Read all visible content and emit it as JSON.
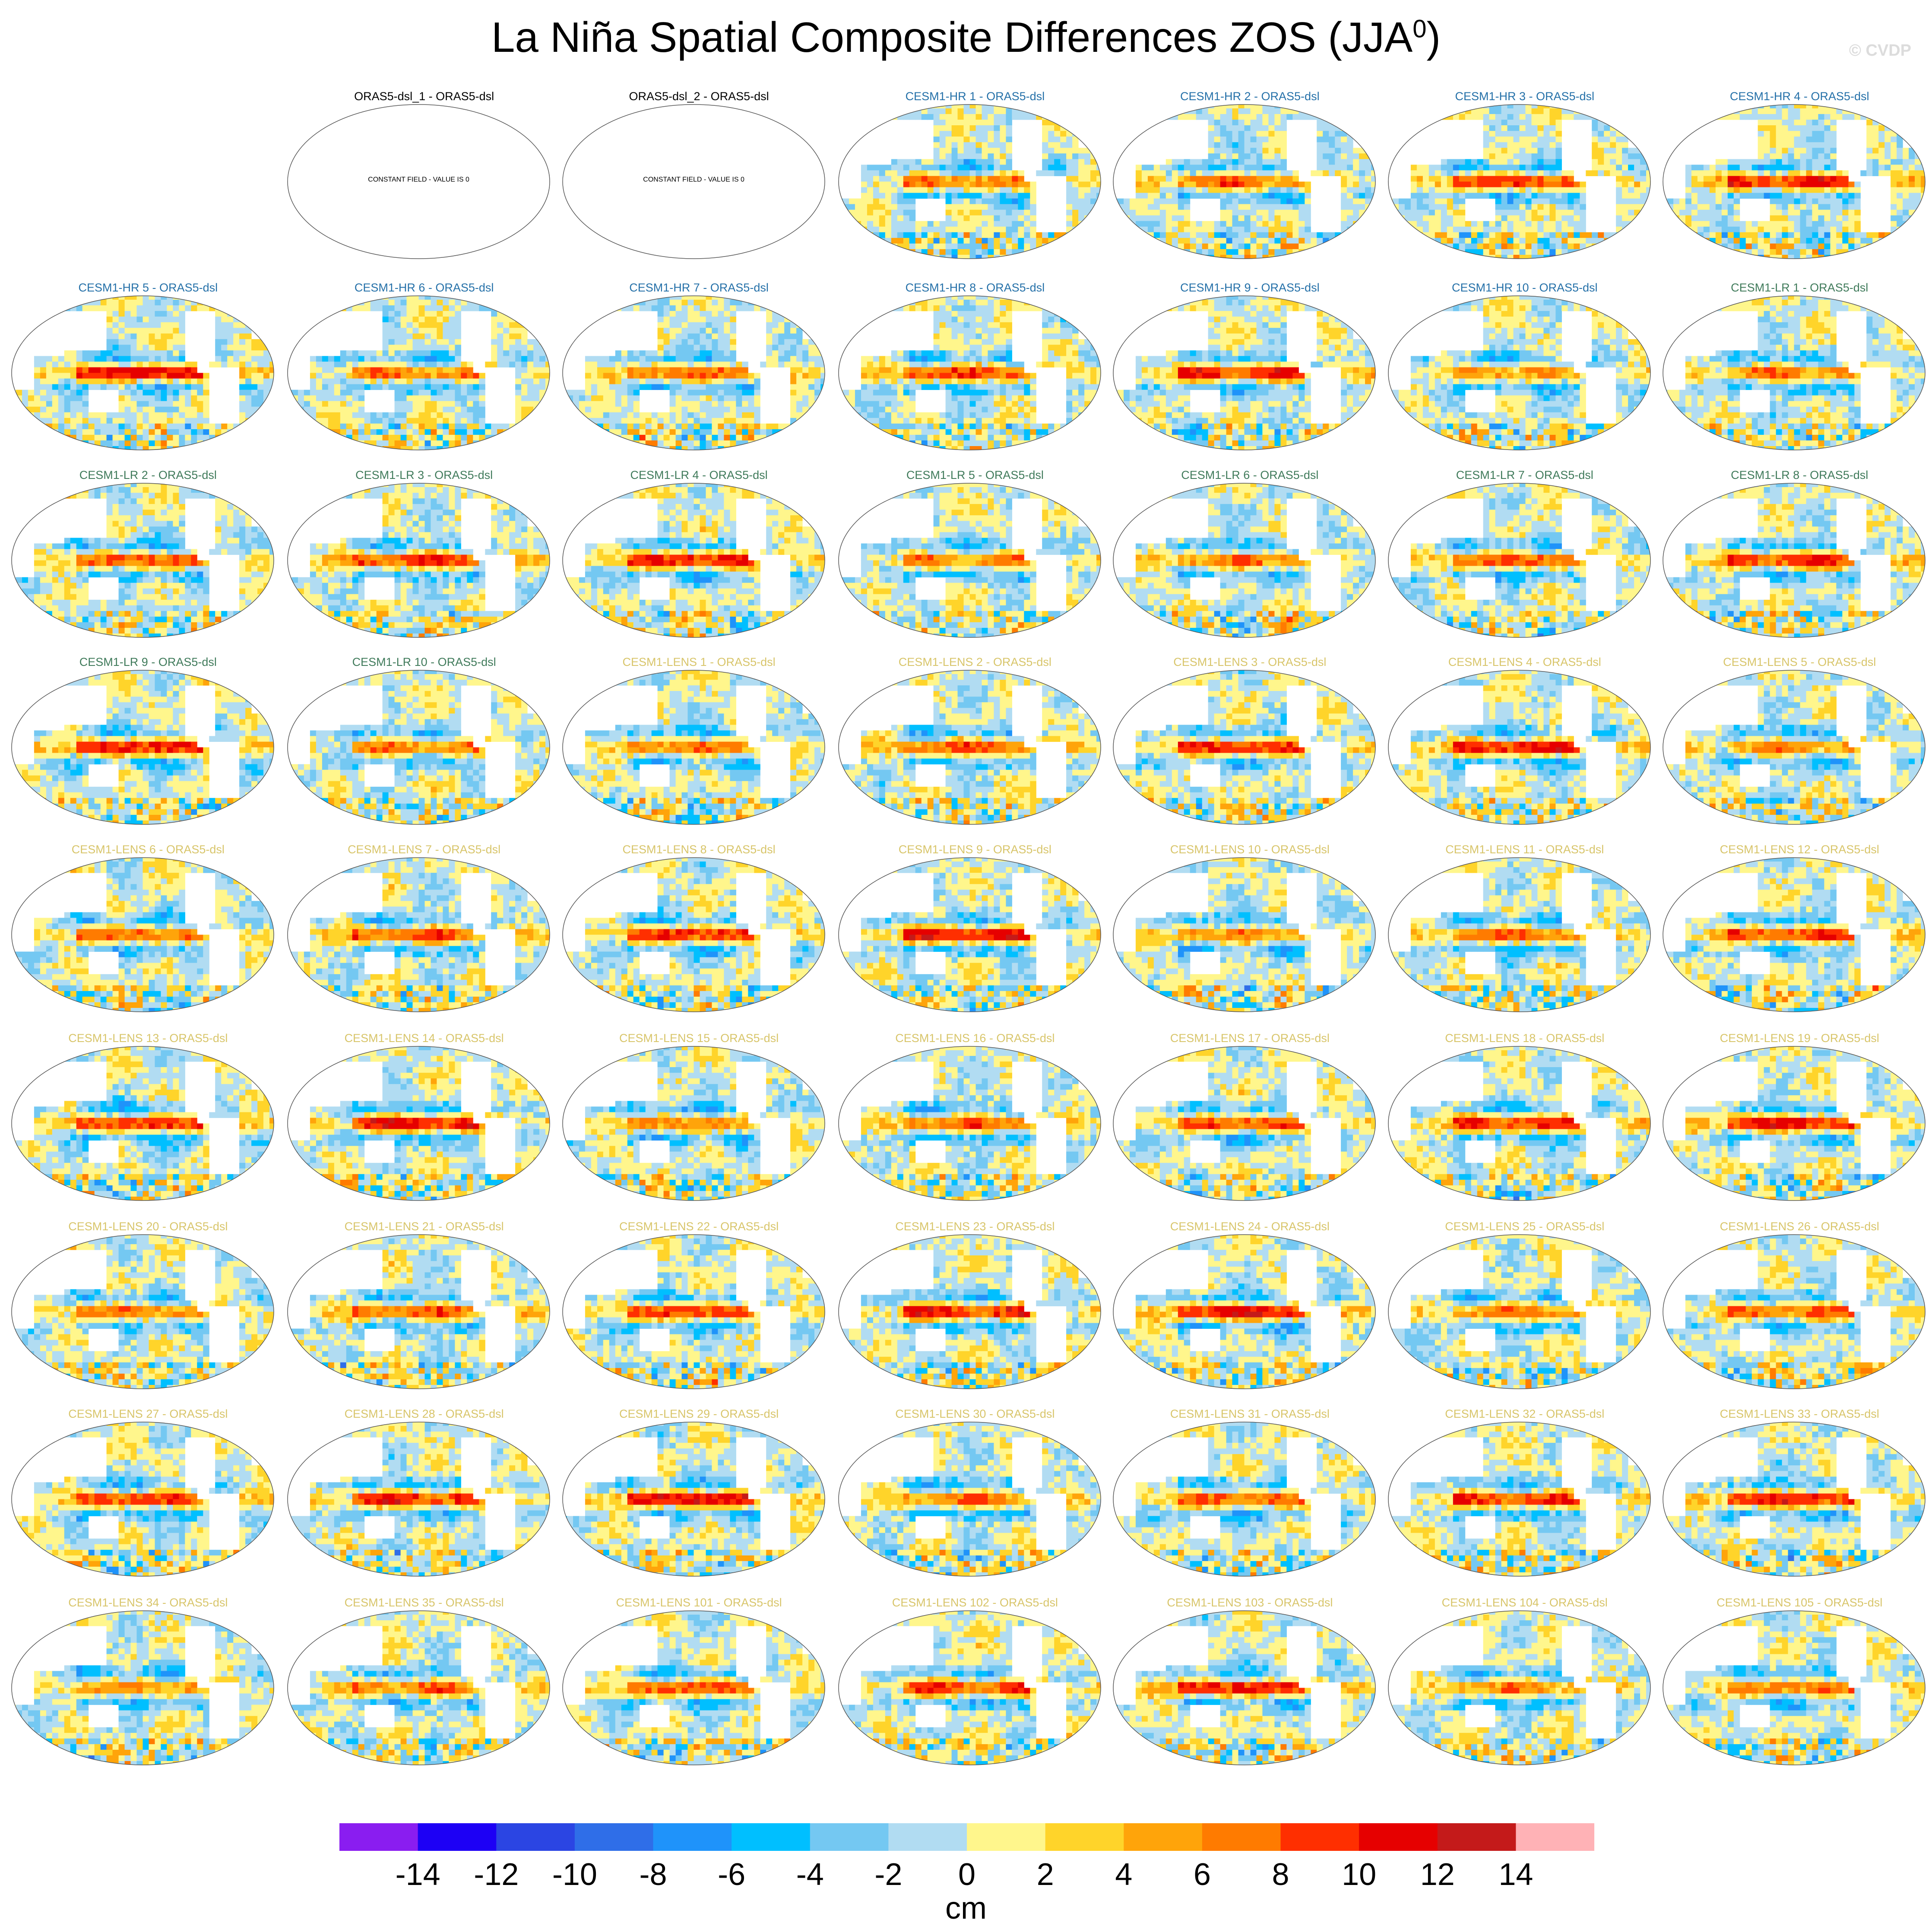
{
  "title": "La Niña Spatial Composite Differences ZOS (JJA",
  "title_superscript": "0",
  "title_suffix": ")",
  "watermark": "© CVDP",
  "colorbar": {
    "units": "cm",
    "tick_labels": [
      "-14",
      "-12",
      "-10",
      "-8",
      "-6",
      "-4",
      "-2",
      "0",
      "2",
      "4",
      "6",
      "8",
      "10",
      "12",
      "14"
    ],
    "colors": [
      "#8a1df0",
      "#1d00f5",
      "#2b45e3",
      "#2f6ee8",
      "#1f93fa",
      "#00bfff",
      "#74c8f2",
      "#b1dcf2",
      "#fff68c",
      "#ffd42a",
      "#ffa40a",
      "#ff7b00",
      "#ff2f00",
      "#e60000",
      "#c41a1a",
      "#ffb2b6"
    ]
  },
  "group_colors": {
    "ORAS5-dsl": "#000000",
    "CESM1-HR": "#2470a8",
    "CESM1-LR": "#3f7a5a",
    "CESM1-LENS": "#d8c56a"
  },
  "panels": [
    {
      "label": "ORAS5-dsl_1 - ORAS5-dsl",
      "group": "ORAS5-dsl",
      "constant_text": "CONSTANT FIELD - VALUE IS 0"
    },
    {
      "label": "ORAS5-dsl_2 - ORAS5-dsl",
      "group": "ORAS5-dsl",
      "constant_text": "CONSTANT FIELD - VALUE IS 0"
    },
    {
      "label": "CESM1-HR 1 - ORAS5-dsl",
      "group": "CESM1-HR"
    },
    {
      "label": "CESM1-HR 2 - ORAS5-dsl",
      "group": "CESM1-HR"
    },
    {
      "label": "CESM1-HR 3 - ORAS5-dsl",
      "group": "CESM1-HR"
    },
    {
      "label": "CESM1-HR 4 - ORAS5-dsl",
      "group": "CESM1-HR"
    },
    {
      "label": "CESM1-HR 5 - ORAS5-dsl",
      "group": "CESM1-HR"
    },
    {
      "label": "CESM1-HR 6 - ORAS5-dsl",
      "group": "CESM1-HR"
    },
    {
      "label": "CESM1-HR 7 - ORAS5-dsl",
      "group": "CESM1-HR"
    },
    {
      "label": "CESM1-HR 8 - ORAS5-dsl",
      "group": "CESM1-HR"
    },
    {
      "label": "CESM1-HR 9 - ORAS5-dsl",
      "group": "CESM1-HR"
    },
    {
      "label": "CESM1-HR 10 - ORAS5-dsl",
      "group": "CESM1-HR"
    },
    {
      "label": "CESM1-LR 1 - ORAS5-dsl",
      "group": "CESM1-LR"
    },
    {
      "label": "CESM1-LR 2 - ORAS5-dsl",
      "group": "CESM1-LR"
    },
    {
      "label": "CESM1-LR 3 - ORAS5-dsl",
      "group": "CESM1-LR"
    },
    {
      "label": "CESM1-LR 4 - ORAS5-dsl",
      "group": "CESM1-LR"
    },
    {
      "label": "CESM1-LR 5 - ORAS5-dsl",
      "group": "CESM1-LR"
    },
    {
      "label": "CESM1-LR 6 - ORAS5-dsl",
      "group": "CESM1-LR"
    },
    {
      "label": "CESM1-LR 7 - ORAS5-dsl",
      "group": "CESM1-LR"
    },
    {
      "label": "CESM1-LR 8 - ORAS5-dsl",
      "group": "CESM1-LR"
    },
    {
      "label": "CESM1-LR 9 - ORAS5-dsl",
      "group": "CESM1-LR"
    },
    {
      "label": "CESM1-LR 10 - ORAS5-dsl",
      "group": "CESM1-LR"
    },
    {
      "label": "CESM1-LENS 1 - ORAS5-dsl",
      "group": "CESM1-LENS"
    },
    {
      "label": "CESM1-LENS 2 - ORAS5-dsl",
      "group": "CESM1-LENS"
    },
    {
      "label": "CESM1-LENS 3 - ORAS5-dsl",
      "group": "CESM1-LENS"
    },
    {
      "label": "CESM1-LENS 4 - ORAS5-dsl",
      "group": "CESM1-LENS"
    },
    {
      "label": "CESM1-LENS 5 - ORAS5-dsl",
      "group": "CESM1-LENS"
    },
    {
      "label": "CESM1-LENS 6 - ORAS5-dsl",
      "group": "CESM1-LENS"
    },
    {
      "label": "CESM1-LENS 7 - ORAS5-dsl",
      "group": "CESM1-LENS"
    },
    {
      "label": "CESM1-LENS 8 - ORAS5-dsl",
      "group": "CESM1-LENS"
    },
    {
      "label": "CESM1-LENS 9 - ORAS5-dsl",
      "group": "CESM1-LENS"
    },
    {
      "label": "CESM1-LENS 10 - ORAS5-dsl",
      "group": "CESM1-LENS"
    },
    {
      "label": "CESM1-LENS 11 - ORAS5-dsl",
      "group": "CESM1-LENS"
    },
    {
      "label": "CESM1-LENS 12 - ORAS5-dsl",
      "group": "CESM1-LENS"
    },
    {
      "label": "CESM1-LENS 13 - ORAS5-dsl",
      "group": "CESM1-LENS"
    },
    {
      "label": "CESM1-LENS 14 - ORAS5-dsl",
      "group": "CESM1-LENS"
    },
    {
      "label": "CESM1-LENS 15 - ORAS5-dsl",
      "group": "CESM1-LENS"
    },
    {
      "label": "CESM1-LENS 16 - ORAS5-dsl",
      "group": "CESM1-LENS"
    },
    {
      "label": "CESM1-LENS 17 - ORAS5-dsl",
      "group": "CESM1-LENS"
    },
    {
      "label": "CESM1-LENS 18 - ORAS5-dsl",
      "group": "CESM1-LENS"
    },
    {
      "label": "CESM1-LENS 19 - ORAS5-dsl",
      "group": "CESM1-LENS"
    },
    {
      "label": "CESM1-LENS 20 - ORAS5-dsl",
      "group": "CESM1-LENS"
    },
    {
      "label": "CESM1-LENS 21 - ORAS5-dsl",
      "group": "CESM1-LENS"
    },
    {
      "label": "CESM1-LENS 22 - ORAS5-dsl",
      "group": "CESM1-LENS"
    },
    {
      "label": "CESM1-LENS 23 - ORAS5-dsl",
      "group": "CESM1-LENS"
    },
    {
      "label": "CESM1-LENS 24 - ORAS5-dsl",
      "group": "CESM1-LENS"
    },
    {
      "label": "CESM1-LENS 25 - ORAS5-dsl",
      "group": "CESM1-LENS"
    },
    {
      "label": "CESM1-LENS 26 - ORAS5-dsl",
      "group": "CESM1-LENS"
    },
    {
      "label": "CESM1-LENS 27 - ORAS5-dsl",
      "group": "CESM1-LENS"
    },
    {
      "label": "CESM1-LENS 28 - ORAS5-dsl",
      "group": "CESM1-LENS"
    },
    {
      "label": "CESM1-LENS 29 - ORAS5-dsl",
      "group": "CESM1-LENS"
    },
    {
      "label": "CESM1-LENS 30 - ORAS5-dsl",
      "group": "CESM1-LENS"
    },
    {
      "label": "CESM1-LENS 31 - ORAS5-dsl",
      "group": "CESM1-LENS"
    },
    {
      "label": "CESM1-LENS 32 - ORAS5-dsl",
      "group": "CESM1-LENS"
    },
    {
      "label": "CESM1-LENS 33 - ORAS5-dsl",
      "group": "CESM1-LENS"
    },
    {
      "label": "CESM1-LENS 34 - ORAS5-dsl",
      "group": "CESM1-LENS"
    },
    {
      "label": "CESM1-LENS 35 - ORAS5-dsl",
      "group": "CESM1-LENS"
    },
    {
      "label": "CESM1-LENS 101 - ORAS5-dsl",
      "group": "CESM1-LENS"
    },
    {
      "label": "CESM1-LENS 102 - ORAS5-dsl",
      "group": "CESM1-LENS"
    },
    {
      "label": "CESM1-LENS 103 - ORAS5-dsl",
      "group": "CESM1-LENS"
    },
    {
      "label": "CESM1-LENS 104 - ORAS5-dsl",
      "group": "CESM1-LENS"
    },
    {
      "label": "CESM1-LENS 105 - ORAS5-dsl",
      "group": "CESM1-LENS"
    }
  ]
}
